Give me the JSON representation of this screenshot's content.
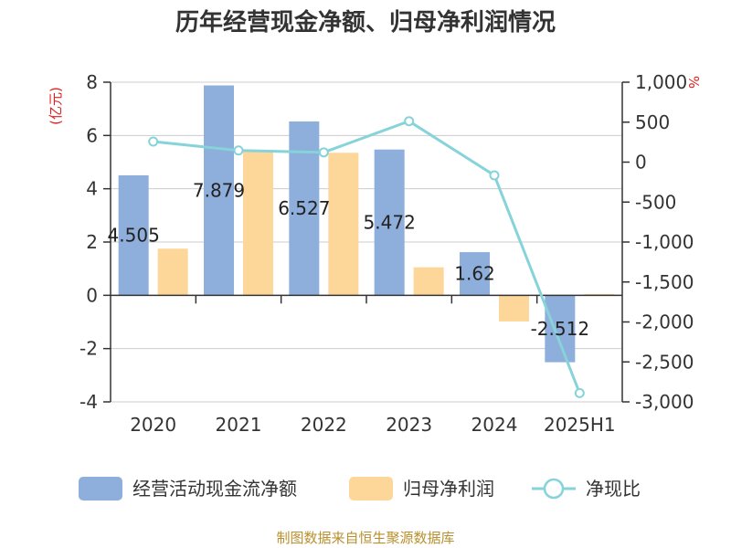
{
  "chart_data": {
    "type": "bar",
    "title": "历年经营现金净额、归母净利润情况",
    "categories": [
      "2020",
      "2021",
      "2022",
      "2023",
      "2024",
      "2025H1"
    ],
    "series": [
      {
        "name": "经营活动现金流净额",
        "kind": "bar",
        "axis": "left",
        "color": "#8eaedb",
        "values": [
          4.505,
          7.879,
          6.527,
          5.472,
          1.62,
          -2.512
        ],
        "labels": [
          "4.505",
          "7.879",
          "6.527",
          "5.472",
          "1.62",
          "-2.512"
        ]
      },
      {
        "name": "归母净利润",
        "kind": "bar",
        "axis": "left",
        "color": "#fdd699",
        "values": [
          1.75,
          5.4,
          5.35,
          1.05,
          -0.98,
          0.05
        ]
      },
      {
        "name": "净现比",
        "kind": "line",
        "axis": "right",
        "color": "#86d3d9",
        "values": [
          257,
          146,
          122,
          512,
          -165,
          -2890
        ]
      }
    ],
    "left_axis": {
      "unit": "(亿元)",
      "min": -4,
      "max": 8,
      "ticks": [
        "8",
        "6",
        "4",
        "2",
        "0",
        "-2",
        "-4"
      ],
      "tick_values": [
        8,
        6,
        4,
        2,
        0,
        -2,
        -4
      ]
    },
    "right_axis": {
      "unit": "%",
      "min": -3000,
      "max": 1000,
      "ticks": [
        "1,000",
        "500",
        "0",
        "-500",
        "-1,000",
        "-1,500",
        "-2,000",
        "-2,500",
        "-3,000"
      ],
      "tick_values": [
        1000,
        500,
        0,
        -500,
        -1000,
        -1500,
        -2000,
        -2500,
        -3000
      ]
    },
    "grid": true,
    "legend_position": "bottom",
    "unit_color": "#e02020"
  },
  "footer": {
    "source": "制图数据来自恒生聚源数据库",
    "color": "#b8902f"
  }
}
